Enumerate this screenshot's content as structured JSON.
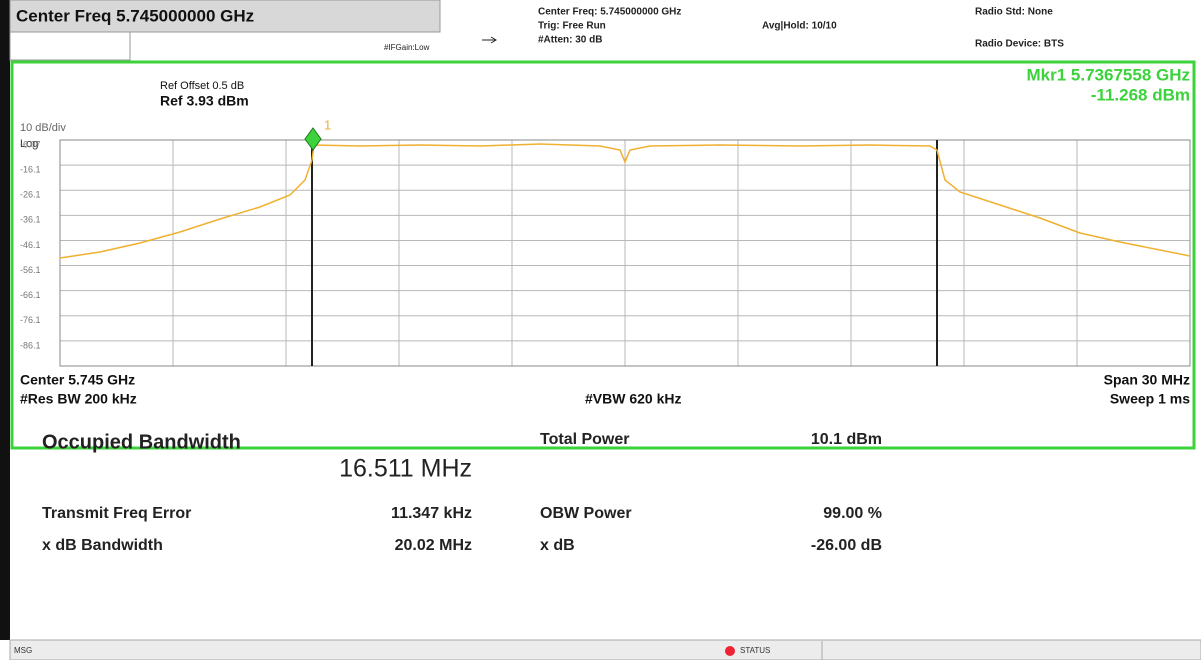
{
  "header": {
    "center_freq": "Center Freq 5.745000000 GHz",
    "if_gain": "#IFGain:Low",
    "center_freq_info": "Center Freq: 5.745000000 GHz",
    "trig": "Trig: Free Run",
    "atten": "#Atten: 30 dB",
    "avg_hold": "Avg|Hold: 10/10",
    "radio_std": "Radio Std: None",
    "radio_device": "Radio Device: BTS"
  },
  "graph": {
    "ref_offset": "Ref Offset 0.5 dB",
    "scale": "10 dB/div",
    "ref": "Ref 3.93 dBm",
    "log": "Log",
    "y_labels": [
      "-6.07",
      "-16.1",
      "-26.1",
      "-36.1",
      "-46.1",
      "-56.1",
      "-66.1",
      "-76.1",
      "-86.1"
    ],
    "marker": {
      "readout_freq": "Mkr1 5.7367558 GHz",
      "readout_level": "-11.268 dBm",
      "label": "1"
    },
    "center": "Center 5.745 GHz",
    "res_bw": "#Res BW 200 kHz",
    "vbw": "#VBW 620 kHz",
    "span": "Span 30 MHz",
    "sweep": "Sweep 1 ms"
  },
  "results": {
    "title": "Occupied Bandwidth",
    "obw": "16.511 MHz",
    "total_power_label": "Total Power",
    "total_power": "10.1 dBm",
    "rows": [
      [
        "Transmit Freq Error",
        "11.347 kHz",
        "OBW Power",
        "99.00 %"
      ],
      [
        "x dB Bandwidth",
        "20.02 MHz",
        "x dB",
        "-26.00 dB"
      ]
    ]
  },
  "status": {
    "msg": "MSG",
    "status": "STATUS"
  }
}
